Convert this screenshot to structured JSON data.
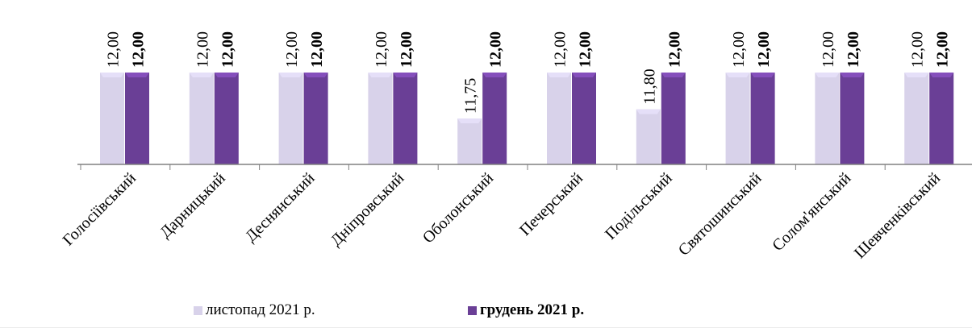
{
  "chart_data": {
    "type": "bar",
    "title": "",
    "xlabel": "",
    "ylabel": "",
    "ylim": [
      11.5,
      12.1
    ],
    "grid": false,
    "legend_position": "bottom",
    "categories": [
      "Голосіївський",
      "Дарницький",
      "Деснянський",
      "Дніпровський",
      "Оболонський",
      "Печерський",
      "Подільський",
      "Святошинський",
      "Солом'янський",
      "Шевченківський"
    ],
    "series": [
      {
        "name": "листопад 2021 р.",
        "values": [
          12.0,
          12.0,
          12.0,
          12.0,
          11.75,
          12.0,
          11.8,
          12.0,
          12.0,
          12.0
        ],
        "labels": [
          "12,00",
          "12,00",
          "12,00",
          "12,00",
          "11,75",
          "12,00",
          "11,80",
          "12,00",
          "12,00",
          "12,00"
        ],
        "color": "#d8d2ea",
        "label_bold": false
      },
      {
        "name": "грудень 2021 р.",
        "values": [
          12.0,
          12.0,
          12.0,
          12.0,
          12.0,
          12.0,
          12.0,
          12.0,
          12.0,
          12.0
        ],
        "labels": [
          "12,00",
          "12,00",
          "12,00",
          "12,00",
          "12,00",
          "12,00",
          "12,00",
          "12,00",
          "12,00",
          "12,00"
        ],
        "color": "#6a3f96",
        "label_bold": true
      }
    ]
  }
}
